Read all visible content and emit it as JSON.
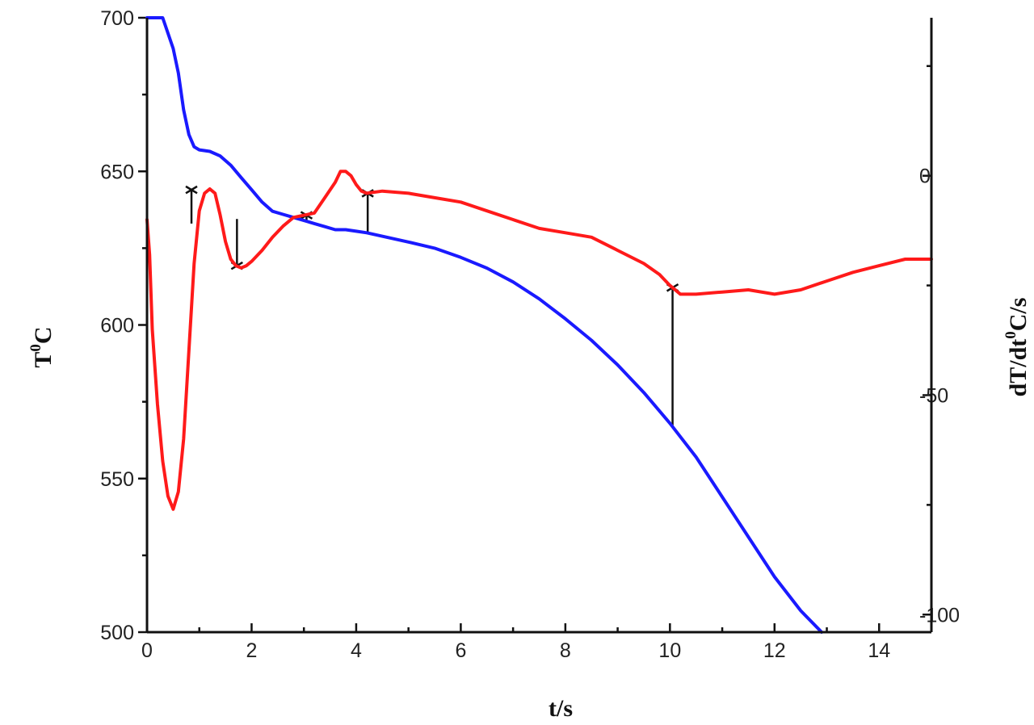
{
  "chart_data": {
    "type": "line",
    "title": "",
    "xlabel": "t/s",
    "ylabel_left": {
      "base": "T",
      "sup": "0",
      "tail": "C"
    },
    "ylabel_right": {
      "p1": "dT/dt",
      "sup": "0",
      "p2": "C/s"
    },
    "xlim": [
      0,
      15
    ],
    "ylim_left": [
      500,
      700
    ],
    "ylim_right": [
      -104,
      36
    ],
    "x_ticks": [
      0,
      2,
      4,
      6,
      8,
      10,
      12,
      14
    ],
    "x_tick_labels": [
      "0",
      "2",
      "4",
      "6",
      "8",
      "10",
      "12",
      "14"
    ],
    "y_left_ticks": [
      500,
      550,
      600,
      650,
      700
    ],
    "y_left_tick_labels": [
      "500",
      "550",
      "600",
      "650",
      "700"
    ],
    "y_right_ticks": [
      -100,
      -50,
      0
    ],
    "y_right_tick_labels": [
      "-100",
      "-50",
      "0"
    ],
    "grid": false,
    "series": [
      {
        "axis": "left",
        "color": "#1a1aff",
        "points": [
          [
            0,
            700
          ],
          [
            0.3,
            700
          ],
          [
            0.5,
            690
          ],
          [
            0.6,
            682
          ],
          [
            0.7,
            670
          ],
          [
            0.8,
            662
          ],
          [
            0.9,
            658
          ],
          [
            1.0,
            657
          ],
          [
            1.2,
            656.5
          ],
          [
            1.4,
            655
          ],
          [
            1.6,
            652
          ],
          [
            1.8,
            648
          ],
          [
            2.0,
            644
          ],
          [
            2.2,
            640
          ],
          [
            2.4,
            637
          ],
          [
            2.6,
            636
          ],
          [
            2.8,
            635
          ],
          [
            3.0,
            634
          ],
          [
            3.2,
            633
          ],
          [
            3.4,
            632
          ],
          [
            3.6,
            631
          ],
          [
            3.8,
            631
          ],
          [
            4.0,
            630.5
          ],
          [
            4.2,
            630
          ],
          [
            4.6,
            628.5
          ],
          [
            5.0,
            627
          ],
          [
            5.5,
            625
          ],
          [
            6.0,
            622
          ],
          [
            6.5,
            618.5
          ],
          [
            7.0,
            614
          ],
          [
            7.5,
            608.5
          ],
          [
            8.0,
            602
          ],
          [
            8.5,
            595
          ],
          [
            9.0,
            587
          ],
          [
            9.5,
            578
          ],
          [
            10.0,
            568
          ],
          [
            10.5,
            557
          ],
          [
            11.0,
            544
          ],
          [
            11.5,
            531
          ],
          [
            12.0,
            518
          ],
          [
            12.5,
            507
          ],
          [
            12.9,
            500
          ]
        ]
      },
      {
        "axis": "right",
        "color": "#ff1a1a",
        "points": [
          [
            0,
            -10
          ],
          [
            0.05,
            -18
          ],
          [
            0.1,
            -35
          ],
          [
            0.2,
            -52
          ],
          [
            0.3,
            -65
          ],
          [
            0.4,
            -73
          ],
          [
            0.5,
            -76
          ],
          [
            0.6,
            -72
          ],
          [
            0.7,
            -60
          ],
          [
            0.8,
            -40
          ],
          [
            0.9,
            -20
          ],
          [
            1.0,
            -8
          ],
          [
            1.1,
            -4
          ],
          [
            1.2,
            -3
          ],
          [
            1.3,
            -4
          ],
          [
            1.4,
            -9
          ],
          [
            1.5,
            -15
          ],
          [
            1.6,
            -19
          ],
          [
            1.7,
            -20.5
          ],
          [
            1.8,
            -21
          ],
          [
            1.9,
            -20.5
          ],
          [
            2.0,
            -19.5
          ],
          [
            2.2,
            -17
          ],
          [
            2.4,
            -14
          ],
          [
            2.6,
            -11.5
          ],
          [
            2.8,
            -9.5
          ],
          [
            3.0,
            -9
          ],
          [
            3.2,
            -8.5
          ],
          [
            3.4,
            -5
          ],
          [
            3.6,
            -1.5
          ],
          [
            3.7,
            1
          ],
          [
            3.8,
            1
          ],
          [
            3.9,
            0
          ],
          [
            4.0,
            -2
          ],
          [
            4.1,
            -3.5
          ],
          [
            4.2,
            -4
          ],
          [
            4.5,
            -3.5
          ],
          [
            5.0,
            -4
          ],
          [
            5.5,
            -5
          ],
          [
            6.0,
            -6
          ],
          [
            6.5,
            -8
          ],
          [
            7.0,
            -10
          ],
          [
            7.5,
            -12
          ],
          [
            8.0,
            -13
          ],
          [
            8.5,
            -14
          ],
          [
            9.0,
            -17
          ],
          [
            9.5,
            -20
          ],
          [
            9.8,
            -22.5
          ],
          [
            10.0,
            -25
          ],
          [
            10.2,
            -27
          ],
          [
            10.5,
            -27
          ],
          [
            11.0,
            -26.5
          ],
          [
            11.5,
            -26
          ],
          [
            12.0,
            -27
          ],
          [
            12.5,
            -26
          ],
          [
            13.0,
            -24
          ],
          [
            13.5,
            -22
          ],
          [
            14.0,
            -20.5
          ],
          [
            14.5,
            -19
          ],
          [
            15.0,
            -19
          ]
        ]
      }
    ],
    "markers": [
      {
        "t": 0.85,
        "T_low": 633,
        "rate": -3.2
      },
      {
        "t": 1.72,
        "T_low": 634.5,
        "rate": -20.5
      },
      {
        "t": 3.05,
        "T_low": 634,
        "rate": -9
      },
      {
        "t": 4.22,
        "T_low": 630,
        "rate": -4
      },
      {
        "t": 10.05,
        "T_low": 567,
        "rate": -25.5
      }
    ]
  }
}
